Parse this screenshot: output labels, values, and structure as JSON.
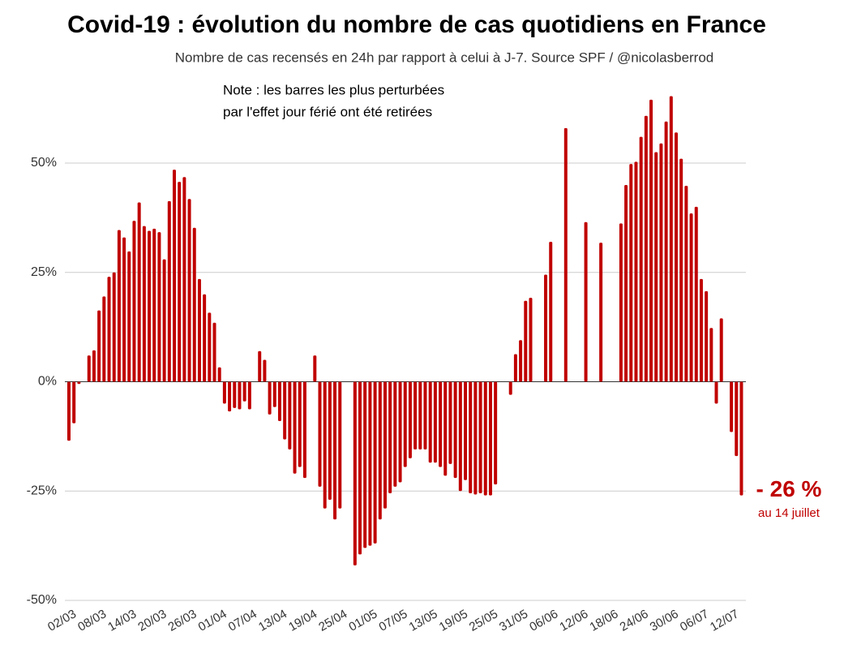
{
  "chart_data": {
    "type": "bar",
    "title": "Covid-19 : évolution du nombre de cas quotidiens en France",
    "subtitle": "Nombre de cas recensés en 24h par rapport à celui à J-7. Source SPF / @nicolasberrod",
    "annotations": [
      "Note : les barres les plus perturbées",
      "par l'effet jour férié ont été retirées",
      "au 14 juillet"
    ],
    "color": "#c00000",
    "grid": true,
    "ylim": [
      -50,
      69
    ],
    "yticks": [
      {
        "value": -50,
        "label": "-50%"
      },
      {
        "value": -25,
        "label": "-25%"
      },
      {
        "value": 0,
        "label": "0%"
      },
      {
        "value": 25,
        "label": "25%"
      },
      {
        "value": 50,
        "label": "50%"
      }
    ],
    "categories": [
      "02/03",
      null,
      null,
      null,
      null,
      null,
      "08/03",
      null,
      null,
      null,
      null,
      null,
      "14/03",
      null,
      null,
      null,
      null,
      null,
      "20/03",
      null,
      null,
      null,
      null,
      null,
      "26/03",
      null,
      null,
      null,
      null,
      null,
      "01/04",
      null,
      null,
      null,
      null,
      null,
      "07/04",
      null,
      null,
      null,
      null,
      null,
      "13/04",
      null,
      null,
      null,
      null,
      null,
      "19/04",
      null,
      null,
      null,
      null,
      null,
      "25/04",
      null,
      null,
      null,
      null,
      null,
      "01/05",
      null,
      null,
      null,
      null,
      null,
      "07/05",
      null,
      null,
      null,
      null,
      null,
      "13/05",
      null,
      null,
      null,
      null,
      null,
      "19/05",
      null,
      null,
      null,
      null,
      null,
      "25/05",
      null,
      null,
      null,
      null,
      null,
      "31/05",
      null,
      null,
      null,
      null,
      null,
      "06/06",
      null,
      null,
      null,
      null,
      null,
      "12/06",
      null,
      null,
      null,
      null,
      null,
      "18/06",
      null,
      null,
      null,
      null,
      null,
      "24/06",
      null,
      null,
      null,
      null,
      null,
      "30/06",
      null,
      null,
      null,
      null,
      null,
      "06/07",
      null,
      null,
      null,
      null,
      null,
      "12/07",
      null,
      null
    ],
    "values": [
      -13.5,
      -9.5,
      -0.5,
      null,
      6,
      7.2,
      16.3,
      19.5,
      24,
      25,
      34.7,
      33,
      29.8,
      36.8,
      41,
      35.6,
      34.5,
      35,
      34.2,
      28,
      41.3,
      48.5,
      45.7,
      46.8,
      41.8,
      35.2,
      23.5,
      20,
      15.8,
      13.5,
      3.3,
      -5,
      -6.8,
      -6,
      -6.3,
      -4.5,
      -6.3,
      null,
      7,
      5,
      -7.5,
      -5.8,
      -9,
      -13.2,
      -15.5,
      -21,
      -19.5,
      -22,
      null,
      6,
      -24,
      -29,
      -27,
      -31.5,
      -29,
      null,
      null,
      -42,
      -39.5,
      -38,
      -37.5,
      -37,
      -31.5,
      -29,
      -25.5,
      -24,
      -23,
      -19.5,
      -17.5,
      -15.5,
      -15.5,
      -15.5,
      -18.5,
      -18.5,
      -19.5,
      -21.5,
      -18.8,
      -22,
      -25,
      -22.5,
      -25.5,
      -25.8,
      -25.5,
      -26,
      -26,
      -23.5,
      null,
      null,
      -3,
      6.3,
      9.5,
      18.5,
      19.2,
      null,
      null,
      24.5,
      32,
      null,
      null,
      58,
      null,
      null,
      null,
      36.5,
      null,
      null,
      31.8,
      null,
      null,
      null,
      36.2,
      45,
      49.8,
      50.3,
      56,
      60.8,
      64.5,
      52.5,
      54.5,
      59.5,
      65.3,
      57,
      51,
      44.8,
      38.5,
      40,
      23.5,
      20.7,
      12.3,
      -5,
      14.5,
      null,
      -11.5,
      -17,
      -26
    ],
    "value_labels": [
      null,
      null,
      null,
      null,
      null,
      null,
      null,
      null,
      null,
      null,
      null,
      null,
      null,
      null,
      null,
      null,
      null,
      null,
      null,
      null,
      null,
      null,
      null,
      null,
      null,
      null,
      null,
      null,
      null,
      null,
      null,
      null,
      null,
      null,
      null,
      null,
      null,
      null,
      null,
      null,
      null,
      null,
      null,
      null,
      null,
      null,
      null,
      null,
      null,
      null,
      null,
      null,
      null,
      null,
      null,
      null,
      null,
      null,
      null,
      null,
      null,
      null,
      null,
      null,
      null,
      null,
      null,
      null,
      null,
      null,
      null,
      null,
      null,
      null,
      null,
      null,
      null,
      null,
      null,
      null,
      null,
      null,
      null,
      null,
      null,
      null,
      null,
      null,
      null,
      null,
      null,
      null,
      null,
      null,
      null,
      null,
      null,
      null,
      null,
      null,
      null,
      null,
      null,
      null,
      null,
      null,
      null,
      null,
      null,
      null,
      null,
      null,
      null,
      null,
      null,
      null,
      null,
      null,
      null,
      null,
      null,
      null,
      null,
      null,
      null,
      null,
      null,
      null,
      null,
      null,
      null,
      null,
      null,
      null,
      "- 26 %"
    ]
  }
}
